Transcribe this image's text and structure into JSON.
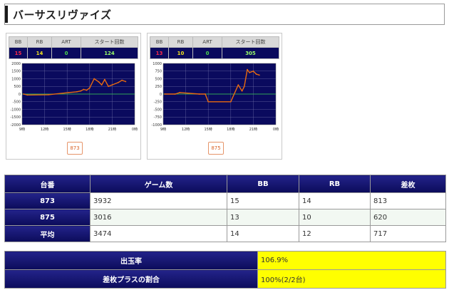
{
  "page": {
    "title": "バーサスリヴァイズ"
  },
  "machines": [
    {
      "header": {
        "bb": "BB",
        "rb": "RB",
        "art": "ART",
        "start": "スタート回数"
      },
      "values": {
        "bb": "15",
        "rb": "14",
        "art": "0",
        "start": "124"
      },
      "button_label": "873"
    },
    {
      "header": {
        "bb": "BB",
        "rb": "RB",
        "art": "ART",
        "start": "スタート回数"
      },
      "values": {
        "bb": "13",
        "rb": "10",
        "art": "0",
        "start": "305"
      },
      "button_label": "875"
    }
  ],
  "chart_data": [
    {
      "type": "line",
      "ylim": [
        -2000,
        2000
      ],
      "xlim": [
        9,
        24
      ],
      "y_ticks": [
        "2000",
        "1500",
        "1000",
        "500",
        "0",
        "-500",
        "-1000",
        "-1500",
        "-2000"
      ],
      "x_ticks": [
        "9時",
        "12時",
        "15時",
        "18時",
        "21時",
        "0時"
      ],
      "series": [
        {
          "color": "#e86a10",
          "points": [
            [
              9.2,
              0
            ],
            [
              9.7,
              -60
            ],
            [
              12.5,
              -40
            ],
            [
              15.2,
              100
            ],
            [
              16.3,
              150
            ],
            [
              16.8,
              200
            ],
            [
              17.2,
              300
            ],
            [
              17.6,
              250
            ],
            [
              18.0,
              400
            ],
            [
              18.6,
              1000
            ],
            [
              19.2,
              800
            ],
            [
              19.6,
              600
            ],
            [
              20.0,
              950
            ],
            [
              20.5,
              500
            ],
            [
              21.0,
              600
            ],
            [
              21.8,
              750
            ],
            [
              22.3,
              900
            ],
            [
              22.8,
              813
            ]
          ]
        }
      ]
    },
    {
      "type": "line",
      "ylim": [
        -1000,
        1000
      ],
      "xlim": [
        9,
        24
      ],
      "y_ticks": [
        "1000",
        "750",
        "500",
        "250",
        "0",
        "-250",
        "-500",
        "-750",
        "-1000"
      ],
      "x_ticks": [
        "9時",
        "12時",
        "15時",
        "18時",
        "21時",
        "0時"
      ],
      "series": [
        {
          "color": "#e86a10",
          "points": [
            [
              9.2,
              0
            ],
            [
              10.6,
              0
            ],
            [
              11.2,
              50
            ],
            [
              13.8,
              0
            ],
            [
              14.6,
              0
            ],
            [
              15.0,
              -250
            ],
            [
              18.0,
              -250
            ],
            [
              19.0,
              300
            ],
            [
              19.5,
              100
            ],
            [
              19.8,
              250
            ],
            [
              20.2,
              800
            ],
            [
              20.5,
              700
            ],
            [
              21.0,
              750
            ],
            [
              21.4,
              650
            ],
            [
              21.8,
              620
            ]
          ]
        }
      ]
    }
  ],
  "stats_table": {
    "headers": [
      "台番",
      "ゲーム数",
      "BB",
      "RB",
      "差枚"
    ],
    "rows": [
      [
        "873",
        "3932",
        "15",
        "14",
        "813"
      ],
      [
        "875",
        "3016",
        "13",
        "10",
        "620"
      ],
      [
        "平均",
        "3474",
        "14",
        "12",
        "717"
      ]
    ]
  },
  "summary": {
    "payout_label": "出玉率",
    "payout_value": "106.9%",
    "plus_label": "差枚プラスの割合",
    "plus_value": "100%(2/2台)"
  },
  "colors": {
    "header_navy": "#0b0b5a",
    "highlight_yellow": "#ffff00",
    "line_orange": "#e86a10",
    "plot_bg": "#0a0a5e",
    "zero_line": "#2ec84a"
  }
}
